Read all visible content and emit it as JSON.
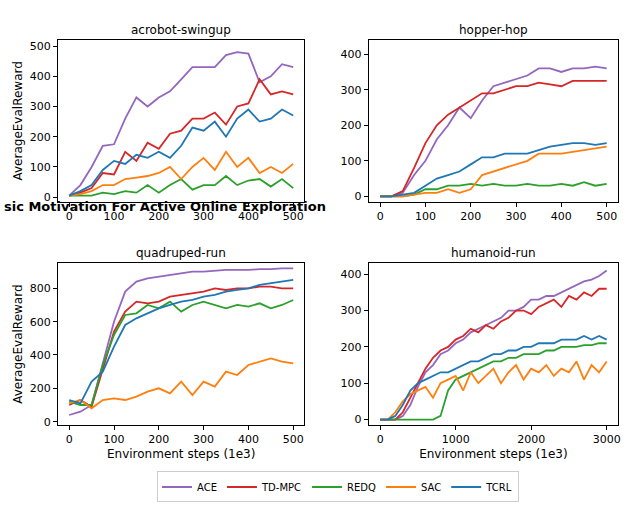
{
  "header": "sic Motivation For Active Online Exploration",
  "chart_data": [
    {
      "type": "line",
      "title": "acrobot-swingup",
      "ylabel": "AverageEvalReward",
      "legend": "bottom",
      "x": [
        0,
        25,
        50,
        75,
        100,
        125,
        150,
        175,
        200,
        225,
        250,
        275,
        300,
        325,
        350,
        375,
        400,
        425,
        450,
        475,
        500
      ],
      "xlim": [
        -25,
        525
      ],
      "xticks": [
        0,
        100,
        200,
        300,
        400,
        500
      ],
      "ylim": [
        -15,
        520
      ],
      "yticks": [
        0,
        100,
        200,
        300,
        400,
        500
      ],
      "grid": false,
      "series": [
        {
          "name": "ACE",
          "color": "#9467bd",
          "values": [
            5,
            40,
            100,
            170,
            175,
            260,
            330,
            300,
            330,
            350,
            390,
            430,
            430,
            430,
            470,
            480,
            475,
            380,
            400,
            440,
            430
          ]
        },
        {
          "name": "TD-MPC",
          "color": "#d62728",
          "values": [
            5,
            15,
            30,
            80,
            75,
            150,
            120,
            180,
            160,
            210,
            220,
            260,
            260,
            280,
            240,
            300,
            310,
            390,
            340,
            350,
            340
          ]
        },
        {
          "name": "REDQ",
          "color": "#2ca02c",
          "values": [
            5,
            5,
            5,
            15,
            10,
            20,
            15,
            40,
            15,
            40,
            60,
            25,
            40,
            40,
            70,
            40,
            55,
            60,
            35,
            60,
            30
          ]
        },
        {
          "name": "SAC",
          "color": "#ff7f0e",
          "values": [
            5,
            10,
            20,
            40,
            40,
            60,
            65,
            70,
            80,
            100,
            60,
            100,
            130,
            90,
            150,
            100,
            130,
            80,
            100,
            80,
            110
          ]
        },
        {
          "name": "TCRL",
          "color": "#1f77b4",
          "values": [
            5,
            20,
            40,
            90,
            120,
            110,
            140,
            130,
            150,
            130,
            170,
            230,
            220,
            250,
            200,
            260,
            290,
            250,
            260,
            290,
            270
          ]
        }
      ]
    },
    {
      "type": "line",
      "title": "hopper-hop",
      "x": [
        0,
        25,
        50,
        75,
        100,
        125,
        150,
        175,
        200,
        225,
        250,
        275,
        300,
        325,
        350,
        375,
        400,
        425,
        450,
        475,
        500
      ],
      "xlim": [
        -25,
        525
      ],
      "xticks": [
        0,
        100,
        200,
        300,
        400,
        500
      ],
      "ylim": [
        -15,
        440
      ],
      "yticks": [
        0,
        100,
        200,
        300,
        400
      ],
      "grid": false,
      "series": [
        {
          "name": "ACE",
          "color": "#9467bd",
          "values": [
            0,
            0,
            10,
            60,
            100,
            160,
            200,
            250,
            220,
            270,
            310,
            320,
            330,
            340,
            360,
            360,
            350,
            360,
            360,
            365,
            360
          ]
        },
        {
          "name": "TD-MPC",
          "color": "#d62728",
          "values": [
            0,
            0,
            15,
            80,
            150,
            200,
            230,
            250,
            270,
            290,
            290,
            300,
            310,
            310,
            320,
            315,
            310,
            325,
            325,
            325,
            325
          ]
        },
        {
          "name": "REDQ",
          "color": "#2ca02c",
          "values": [
            0,
            0,
            0,
            5,
            20,
            20,
            30,
            30,
            35,
            30,
            35,
            30,
            30,
            35,
            30,
            30,
            35,
            30,
            40,
            30,
            35
          ]
        },
        {
          "name": "SAC",
          "color": "#ff7f0e",
          "values": [
            0,
            0,
            0,
            5,
            10,
            10,
            20,
            10,
            20,
            60,
            70,
            80,
            90,
            100,
            120,
            120,
            120,
            125,
            130,
            135,
            140
          ]
        },
        {
          "name": "TCRL",
          "color": "#1f77b4",
          "values": [
            0,
            0,
            5,
            10,
            30,
            50,
            60,
            70,
            90,
            110,
            110,
            120,
            120,
            120,
            130,
            140,
            145,
            150,
            150,
            145,
            150
          ]
        }
      ]
    },
    {
      "type": "line",
      "title": "quadruped-run",
      "ylabel": "AverageEvalReward",
      "xlabel": "Environment steps (1e3)",
      "x": [
        0,
        25,
        50,
        75,
        100,
        125,
        150,
        175,
        200,
        225,
        250,
        275,
        300,
        325,
        350,
        375,
        400,
        425,
        450,
        475,
        500
      ],
      "xlim": [
        -25,
        525
      ],
      "xticks": [
        0,
        100,
        200,
        300,
        400,
        500
      ],
      "ylim": [
        -20,
        950
      ],
      "yticks": [
        0,
        200,
        400,
        600,
        800
      ],
      "grid": false,
      "series": [
        {
          "name": "ACE",
          "color": "#9467bd",
          "values": [
            40,
            60,
            100,
            350,
            600,
            780,
            840,
            860,
            870,
            880,
            890,
            900,
            900,
            905,
            910,
            910,
            910,
            915,
            915,
            920,
            920
          ]
        },
        {
          "name": "TD-MPC",
          "color": "#d62728",
          "values": [
            100,
            130,
            90,
            320,
            540,
            660,
            720,
            710,
            720,
            750,
            760,
            770,
            780,
            800,
            790,
            800,
            800,
            810,
            810,
            800,
            800
          ]
        },
        {
          "name": "REDQ",
          "color": "#2ca02c",
          "values": [
            120,
            100,
            100,
            340,
            520,
            640,
            650,
            700,
            680,
            720,
            660,
            700,
            720,
            700,
            680,
            700,
            690,
            710,
            680,
            700,
            730
          ]
        },
        {
          "name": "SAC",
          "color": "#ff7f0e",
          "values": [
            110,
            130,
            80,
            130,
            140,
            130,
            150,
            180,
            200,
            170,
            240,
            160,
            240,
            210,
            300,
            280,
            340,
            360,
            380,
            360,
            350
          ]
        },
        {
          "name": "TCRL",
          "color": "#1f77b4",
          "values": [
            130,
            110,
            240,
            300,
            450,
            580,
            620,
            650,
            680,
            700,
            720,
            730,
            750,
            760,
            780,
            790,
            800,
            820,
            830,
            840,
            850
          ]
        }
      ]
    },
    {
      "type": "line",
      "title": "humanoid-run",
      "xlabel": "Environment steps (1e3)",
      "x": [
        0,
        100,
        200,
        300,
        400,
        500,
        600,
        700,
        800,
        900,
        1000,
        1100,
        1200,
        1300,
        1400,
        1500,
        1600,
        1700,
        1800,
        1900,
        2000,
        2100,
        2200,
        2300,
        2400,
        2500,
        2600,
        2700,
        2800,
        2900,
        3000
      ],
      "xlim": [
        -150,
        3150
      ],
      "xticks": [
        0,
        1000,
        2000,
        3000
      ],
      "ylim": [
        -15,
        430
      ],
      "yticks": [
        0,
        100,
        200,
        300,
        400
      ],
      "grid": false,
      "series": [
        {
          "name": "ACE",
          "color": "#9467bd",
          "values": [
            0,
            0,
            0,
            10,
            40,
            90,
            130,
            150,
            180,
            190,
            210,
            220,
            240,
            250,
            260,
            270,
            280,
            300,
            300,
            310,
            330,
            330,
            340,
            340,
            350,
            360,
            370,
            380,
            385,
            395,
            410
          ]
        },
        {
          "name": "TD-MPC",
          "color": "#d62728",
          "values": [
            0,
            0,
            0,
            20,
            60,
            100,
            140,
            170,
            190,
            200,
            220,
            230,
            250,
            240,
            260,
            250,
            270,
            280,
            300,
            300,
            290,
            310,
            320,
            330,
            310,
            340,
            330,
            350,
            340,
            360,
            360
          ]
        },
        {
          "name": "REDQ",
          "color": "#2ca02c",
          "values": [
            0,
            0,
            0,
            0,
            0,
            0,
            0,
            0,
            10,
            80,
            110,
            120,
            130,
            140,
            150,
            160,
            160,
            170,
            170,
            180,
            180,
            180,
            190,
            190,
            200,
            200,
            200,
            205,
            205,
            210,
            210
          ]
        },
        {
          "name": "SAC",
          "color": "#ff7f0e",
          "values": [
            0,
            0,
            20,
            50,
            70,
            80,
            90,
            60,
            100,
            110,
            120,
            80,
            130,
            100,
            120,
            140,
            100,
            130,
            150,
            110,
            140,
            130,
            150,
            120,
            140,
            130,
            160,
            110,
            150,
            130,
            160
          ]
        },
        {
          "name": "TCRL",
          "color": "#1f77b4",
          "values": [
            0,
            0,
            10,
            40,
            80,
            100,
            110,
            120,
            130,
            130,
            140,
            150,
            160,
            160,
            170,
            180,
            180,
            190,
            190,
            200,
            200,
            210,
            210,
            210,
            220,
            220,
            220,
            230,
            220,
            230,
            220
          ]
        }
      ]
    }
  ]
}
